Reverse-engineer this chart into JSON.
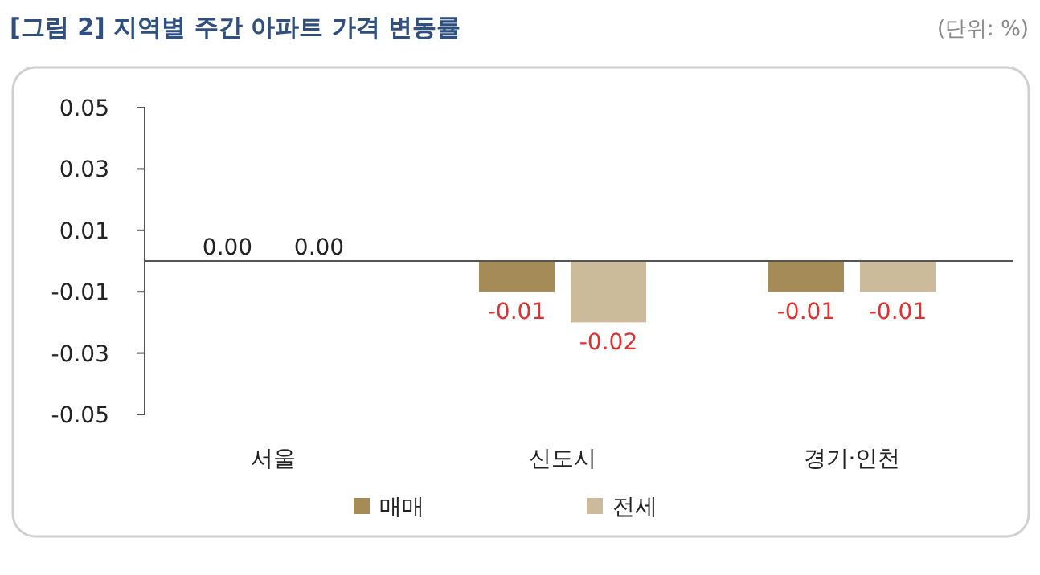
{
  "chart_data": {
    "type": "bar",
    "title": "[그림 2] 지역별 주간 아파트 가격 변동률",
    "annotations": [
      "(단위: %)"
    ],
    "categories": [
      "서울",
      "신도시",
      "경기·인천"
    ],
    "series": [
      {
        "name": "매매",
        "color": "#a58b57",
        "values": [
          0,
          -0.01,
          -0.01
        ],
        "value_labels": [
          "0.00",
          "-0.01",
          "-0.01"
        ]
      },
      {
        "name": "전세",
        "color": "#cbbb9b",
        "values": [
          0,
          -0.02,
          -0.01
        ],
        "value_labels": [
          "0.00",
          "-0.02",
          "-0.01"
        ]
      }
    ],
    "ylim": [
      -0.05,
      0.05
    ],
    "yticks": [
      -0.05,
      -0.03,
      -0.01,
      0.01,
      0.03,
      0.05
    ],
    "grid": false,
    "legend": "bottom"
  }
}
